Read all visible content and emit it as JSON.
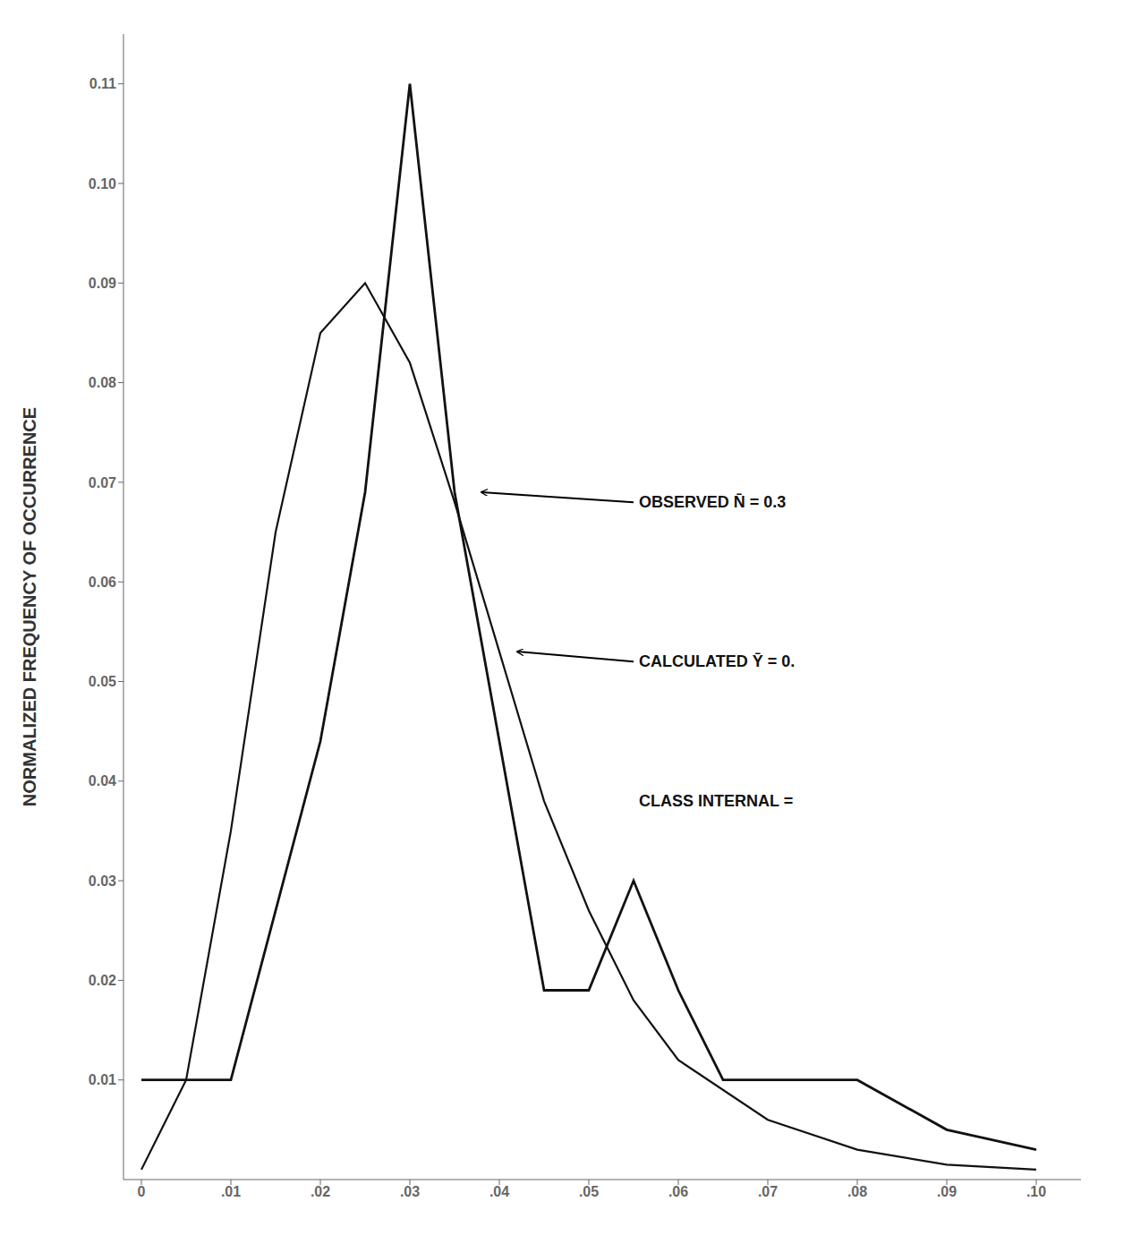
{
  "chart_data": {
    "type": "line",
    "ylabel": "NORMALIZED FREQUENCY OF OCCURRENCE",
    "xlim": [
      -0.002,
      0.105
    ],
    "ylim": [
      0.0,
      0.115
    ],
    "xticks": [
      0,
      {
        "value": 0.01,
        "label": ".01"
      },
      {
        "value": 0.02,
        "label": ".02"
      },
      {
        "value": 0.03,
        "label": ".03"
      },
      {
        "value": 0.04,
        "label": ".04"
      },
      {
        "value": 0.05,
        "label": ".05"
      },
      {
        "value": 0.06,
        "label": ".06"
      },
      {
        "value": 0.07,
        "label": ".07"
      },
      {
        "value": 0.08,
        "label": ".08"
      },
      {
        "value": 0.09,
        "label": ".09"
      },
      {
        "value": 0.1,
        "label": ".10"
      }
    ],
    "yticks": [
      0.01,
      0.02,
      0.03,
      0.04,
      0.05,
      0.06,
      0.07,
      0.08,
      0.09,
      {
        "value": 0.1,
        "label": "0.10"
      },
      0.11
    ],
    "grid": false,
    "series": [
      {
        "x": [
          0.0,
          0.01,
          0.02,
          0.025,
          0.03,
          0.035,
          0.04,
          0.045,
          0.05,
          0.055,
          0.06,
          0.065,
          0.07,
          0.08,
          0.09,
          0.1
        ],
        "values": [
          0.01,
          0.01,
          0.044,
          0.069,
          0.11,
          0.069,
          0.044,
          0.019,
          0.019,
          0.03,
          0.019,
          0.01,
          0.01,
          0.01,
          0.005,
          0.003
        ],
        "color": "#111111"
      },
      {
        "x": [
          0.0,
          0.005,
          0.01,
          0.015,
          0.02,
          0.025,
          0.03,
          0.035,
          0.04,
          0.045,
          0.05,
          0.055,
          0.06,
          0.07,
          0.08,
          0.09,
          0.1
        ],
        "values": [
          0.001,
          0.01,
          0.035,
          0.065,
          0.085,
          0.09,
          0.082,
          0.068,
          0.053,
          0.038,
          0.027,
          0.018,
          0.012,
          0.006,
          0.003,
          0.0015,
          0.001
        ],
        "color": "#111111"
      }
    ],
    "annotations": [
      {
        "text": "OBSERVED  N̄ = 0.3",
        "x": 0.055,
        "y": 0.068,
        "arrow_x": 0.038,
        "arrow_y": 0.069
      },
      {
        "text": "CALCULATED  Ȳ = 0.",
        "x": 0.055,
        "y": 0.052,
        "arrow_x": 0.042,
        "arrow_y": 0.053
      },
      {
        "text": "CLASS INTERNAL =",
        "x": 0.055,
        "y": 0.038
      }
    ]
  }
}
